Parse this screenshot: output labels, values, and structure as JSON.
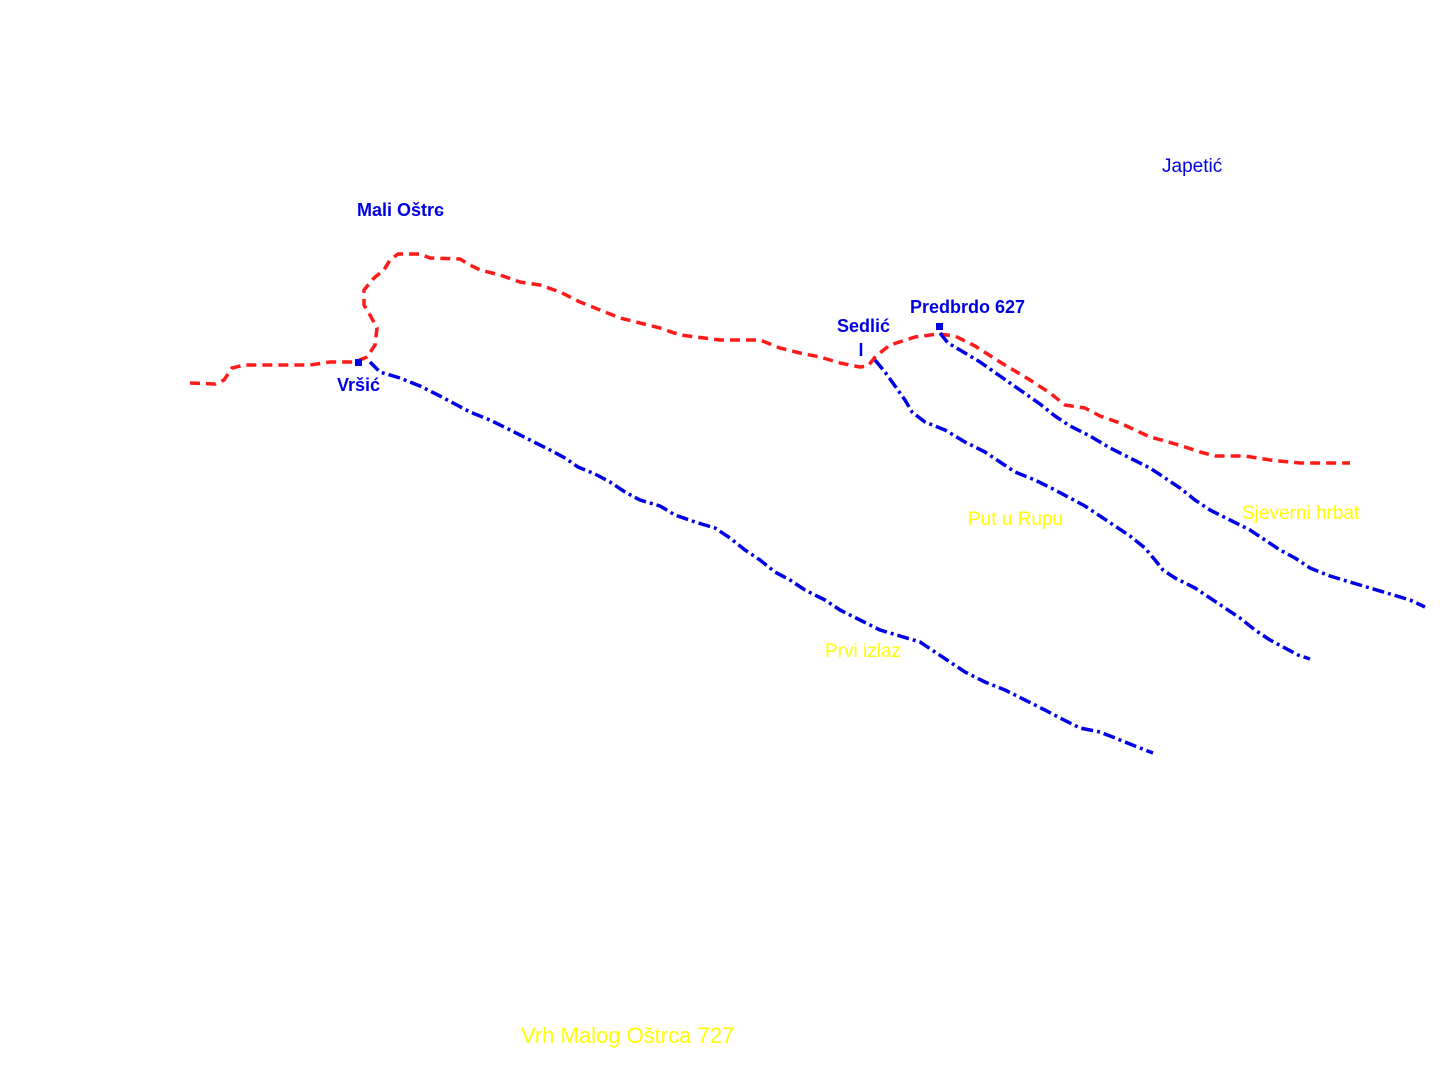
{
  "colors": {
    "background": "#ffffff",
    "path_red": "#ff1a1a",
    "path_blue": "#0000e6",
    "label_blue": "#0000e6",
    "label_yellow": "#ffff00"
  },
  "places": {
    "mali_ostrc": "Mali Oštrc",
    "japetic": "Japetić",
    "predbrdo": "Predbrdo 627",
    "sedlic": "Sedlić",
    "vrsic": "Vršić"
  },
  "routes": {
    "sjeverni_hrbat": "Sjeverni hrbat",
    "put_u_rupu": "Put u Rupu",
    "prvi_izlaz": "Prvi izlaz",
    "vrh_malog_ostrca": "Vrh Malog Oštrca 727"
  }
}
